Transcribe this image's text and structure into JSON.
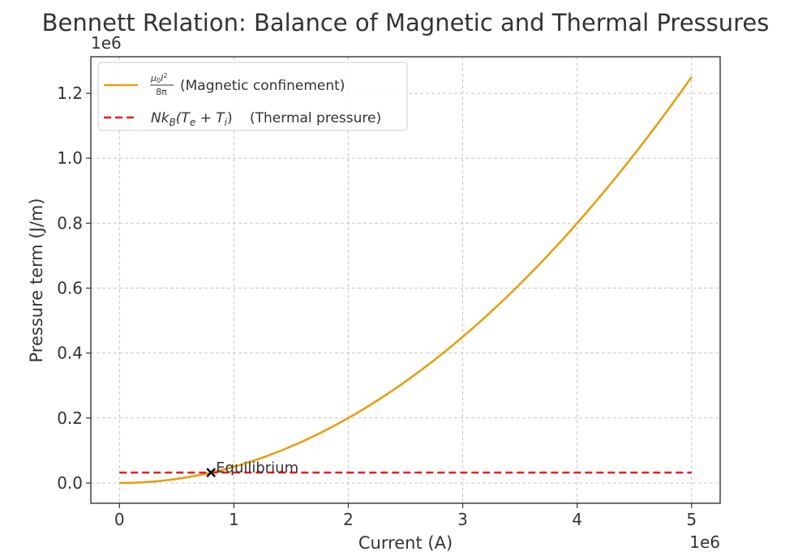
{
  "chart_data": {
    "type": "line",
    "title": "Bennett Relation: Balance of Magnetic and Thermal Pressures",
    "xlabel": "Current (A)",
    "ylabel": "Pressure term (J/m)",
    "x_offset_label": "1e6",
    "y_offset_label": "1e6",
    "xlim": [
      -0.25,
      5.25
    ],
    "ylim": [
      -0.0625,
      1.3125
    ],
    "x_scale": 1000000,
    "y_scale": 1000000,
    "xticks": [
      0,
      1,
      2,
      3,
      4,
      5
    ],
    "xtick_labels": [
      "0",
      "1",
      "2",
      "3",
      "4",
      "5"
    ],
    "yticks": [
      0.0,
      0.2,
      0.4,
      0.6,
      0.8,
      1.0,
      1.2
    ],
    "ytick_labels": [
      "0.0",
      "0.2",
      "0.4",
      "0.6",
      "0.8",
      "1.0",
      "1.2"
    ],
    "grid": true,
    "legend_position": "top-left",
    "series": [
      {
        "name": "magnetic",
        "label_parts": [
          "μ",
          "0",
          "I",
          "2",
          "8π",
          "(Magnetic confinement)"
        ],
        "style": "solid",
        "color": "#E5A014",
        "formula_y_per_x_squared": 0.05,
        "x_range": [
          0,
          5
        ]
      },
      {
        "name": "thermal",
        "label_parts": [
          "Nk",
          "B",
          "(T",
          "e",
          " + T",
          "i",
          ")",
          "(Thermal pressure)"
        ],
        "style": "dashed",
        "color": "#EE1C1C",
        "constant_y": 0.032,
        "x_range": [
          0,
          5
        ]
      }
    ],
    "annotations": [
      {
        "text": "Equilibrium",
        "x": 0.8,
        "y": 0.032,
        "marker": "x",
        "marker_color": "#111111"
      }
    ]
  }
}
